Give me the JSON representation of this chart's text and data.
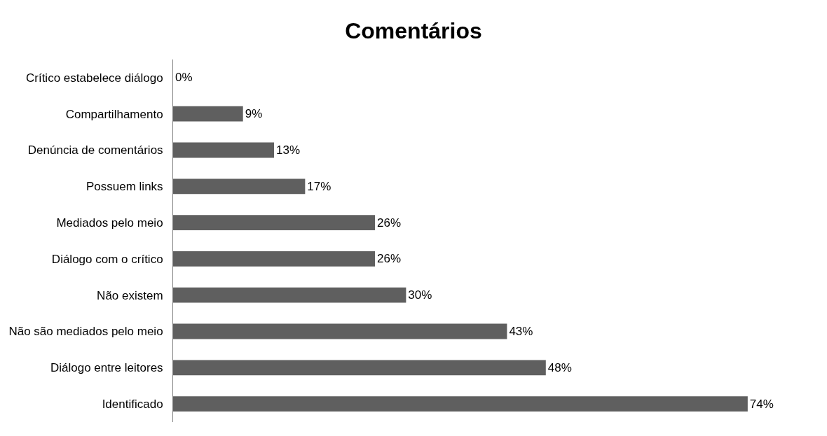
{
  "chart_data": {
    "type": "bar",
    "orientation": "horizontal",
    "title": "Comentários",
    "categories": [
      "Crítico estabelece diálogo",
      "Compartilhamento",
      "Denúncia de comentários",
      "Possuem links",
      "Mediados pelo meio",
      "Diálogo com o crítico",
      "Não existem",
      "Não são mediados pelo meio",
      "Diálogo entre leitores",
      "Identificado"
    ],
    "values": [
      0,
      9,
      13,
      17,
      26,
      26,
      30,
      43,
      48,
      74
    ],
    "value_labels": [
      "0%",
      "9%",
      "13%",
      "17%",
      "26%",
      "26%",
      "30%",
      "43%",
      "48%",
      "74%"
    ],
    "color": "#5f5f5f",
    "tick_labels": "y"
  }
}
